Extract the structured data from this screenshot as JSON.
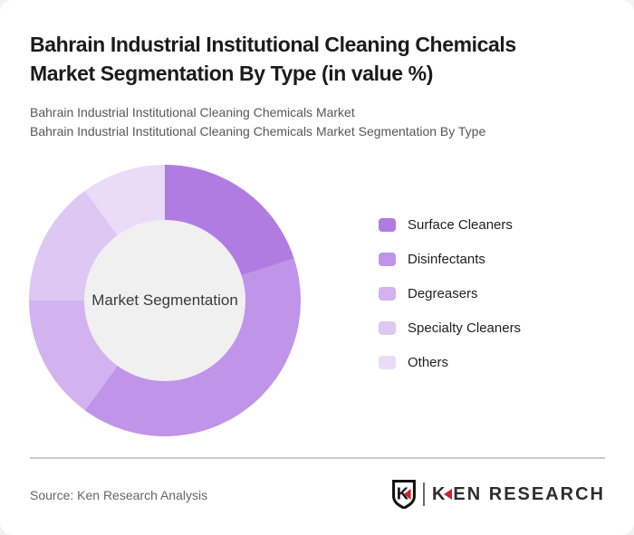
{
  "page": {
    "title_line1": "Bahrain Industrial Institutional Cleaning Chemicals",
    "title_line2": "Market Segmentation By Type (in value %)",
    "subtitle_line1": "Bahrain Industrial Institutional Cleaning Chemicals Market",
    "subtitle_line2": "Bahrain Industrial Institutional Cleaning Chemicals Market Segmentation By Type"
  },
  "chart_data": {
    "type": "pie",
    "variant": "donut",
    "title": "Bahrain Industrial Institutional Cleaning Chemicals Market Segmentation By Type (in value %)",
    "unit": "value %",
    "center_label": "Market Segmentation",
    "start_angle_deg": 0,
    "direction": "clockwise",
    "inner_radius_ratio": 0.587,
    "center_circle_color": "#f0f0f0",
    "legend_position": "right",
    "segments": [
      {
        "label": "Surface Cleaners",
        "value": 20,
        "color": "#b17ce2"
      },
      {
        "label": "Disinfectants",
        "value": 40,
        "color": "#c094e9"
      },
      {
        "label": "Degreasers",
        "value": 15,
        "color": "#d2b3ef"
      },
      {
        "label": "Specialty Cleaners",
        "value": 15,
        "color": "#ddc8f3"
      },
      {
        "label": "Others",
        "value": 10,
        "color": "#eadcf8"
      }
    ]
  },
  "footer": {
    "source": "Source: Ken Research Analysis",
    "logo": {
      "emblem_letter": "K",
      "brand_k": "K",
      "brand_rest": "EN RESEARCH",
      "accent_color": "#c9232b"
    }
  }
}
